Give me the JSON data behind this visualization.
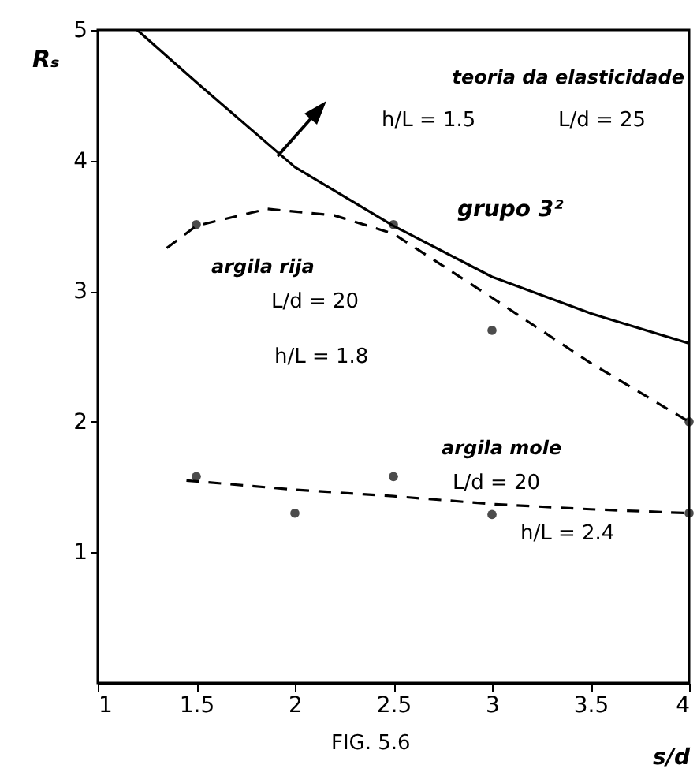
{
  "chart_data": {
    "type": "line",
    "xlabel": "s/d",
    "ylabel": "Rₛ",
    "xlim": [
      1,
      4
    ],
    "ylim": [
      0,
      5
    ],
    "xticks": [
      1,
      1.5,
      2,
      2.5,
      3,
      3.5,
      4
    ],
    "yticks": [
      1,
      2,
      3,
      4,
      5
    ],
    "grid": false,
    "series": [
      {
        "color": "#000000",
        "line_style": "solid",
        "marker": "none",
        "x": [
          1.2,
          1.5,
          2,
          2.5,
          3,
          3.5,
          4
        ],
        "values": [
          5,
          4.6,
          3.95,
          3.5,
          3.11,
          2.83,
          2.6
        ]
      },
      {
        "type": "line",
        "color": "#000000",
        "line_style": "dashed",
        "marker": "none",
        "x": [
          1.35,
          1.5,
          1.86,
          2.2,
          2.5,
          3,
          3.5,
          4
        ],
        "values": [
          3.33,
          3.5,
          3.63,
          3.58,
          3.44,
          2.95,
          2.45,
          2.0
        ]
      },
      {
        "type": "scatter",
        "color": "#000000",
        "marker": "circle",
        "x": [
          1.5,
          2.5,
          3,
          4
        ],
        "values": [
          3.51,
          3.51,
          2.7,
          2.0
        ]
      },
      {
        "type": "line",
        "color": "#000000",
        "line_style": "dashed",
        "marker": "none",
        "x": [
          1.45,
          2,
          2.5,
          3,
          3.5,
          4
        ],
        "values": [
          1.55,
          1.48,
          1.43,
          1.37,
          1.33,
          1.3
        ]
      },
      {
        "type": "scatter",
        "color": "#000000",
        "marker": "circle",
        "x": [
          1.5,
          2,
          2.5,
          3,
          4
        ],
        "values": [
          1.58,
          1.3,
          1.58,
          1.29,
          1.3
        ]
      }
    ],
    "annotations": [
      "teoria da elasticidade",
      "h/L = 1.5",
      "L/d = 25",
      "grupo 3²",
      "argila rija",
      "L/d = 20",
      "h/L = 1.8",
      "argila mole",
      "L/d = 20",
      "h/L = 2.4",
      "FIG. 5.6"
    ]
  }
}
